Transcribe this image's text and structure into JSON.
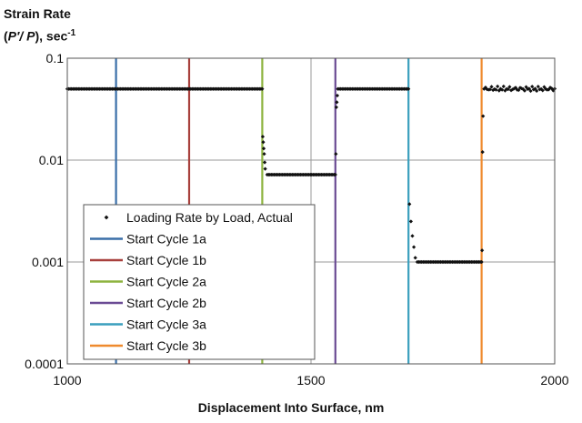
{
  "chart_data": {
    "type": "line",
    "ylabel_line1": "Strain Rate",
    "ylabel_line2_pre": "(",
    "ylabel_line2_expr": "P′/ P",
    "ylabel_line2_post": "), sec",
    "ylabel_exp": "-1",
    "xlabel": "Displacement Into Surface, nm",
    "x_scale": "linear",
    "y_scale": "log",
    "xlim": [
      1000,
      2000
    ],
    "ylim": [
      0.0001,
      0.1
    ],
    "x_ticks": [
      1000,
      1500,
      2000
    ],
    "x_tick_labels": [
      "1000",
      "1500",
      "2000"
    ],
    "y_ticks": [
      0.0001,
      0.001,
      0.01,
      0.1
    ],
    "y_tick_labels": [
      "0.0001",
      "0.001",
      "0.01",
      "0.1"
    ],
    "grid": true,
    "legend_position": "lower-left",
    "series": [
      {
        "name": "Loading Rate by Load, Actual",
        "style": "markers",
        "color": "#111111",
        "segments": [
          {
            "x_start": 1000,
            "x_end": 1400,
            "y": 0.05,
            "count": 140
          },
          {
            "x_start": 1410,
            "x_end": 1550,
            "y": 0.0072,
            "count": 50
          },
          {
            "x_start": 1555,
            "x_end": 1700,
            "y": 0.05,
            "count": 50
          },
          {
            "x_start": 1718,
            "x_end": 1850,
            "y": 0.001,
            "count": 45
          },
          {
            "x_start": 1855,
            "x_end": 2000,
            "y": 0.05,
            "count": 48,
            "jitter": 0.06
          }
        ],
        "transitions": [
          {
            "x": 1401,
            "y": 0.017
          },
          {
            "x": 1402,
            "y": 0.015
          },
          {
            "x": 1403,
            "y": 0.013
          },
          {
            "x": 1404,
            "y": 0.0115
          },
          {
            "x": 1405,
            "y": 0.0095
          },
          {
            "x": 1406,
            "y": 0.0082
          },
          {
            "x": 1551,
            "y": 0.0115
          },
          {
            "x": 1552,
            "y": 0.033
          },
          {
            "x": 1553,
            "y": 0.037
          },
          {
            "x": 1554,
            "y": 0.043
          },
          {
            "x": 1702,
            "y": 0.0037
          },
          {
            "x": 1705,
            "y": 0.0025
          },
          {
            "x": 1708,
            "y": 0.0018
          },
          {
            "x": 1711,
            "y": 0.0014
          },
          {
            "x": 1714,
            "y": 0.0011
          },
          {
            "x": 1851,
            "y": 0.0013
          },
          {
            "x": 1852,
            "y": 0.012
          },
          {
            "x": 1853,
            "y": 0.027
          }
        ]
      },
      {
        "name": "Start Cycle 1a",
        "style": "vline",
        "x": 1100,
        "color": "#3a6fa8"
      },
      {
        "name": "Start Cycle 1b",
        "style": "vline",
        "x": 1250,
        "color": "#a8403c"
      },
      {
        "name": "Start Cycle 2a",
        "style": "vline",
        "x": 1400,
        "color": "#8db33e"
      },
      {
        "name": "Start Cycle 2b",
        "style": "vline",
        "x": 1550,
        "color": "#6b4b94"
      },
      {
        "name": "Start Cycle 3a",
        "style": "vline",
        "x": 1700,
        "color": "#3a9fbd"
      },
      {
        "name": "Start Cycle 3b",
        "style": "vline",
        "x": 1850,
        "color": "#ef8a2e"
      }
    ]
  }
}
